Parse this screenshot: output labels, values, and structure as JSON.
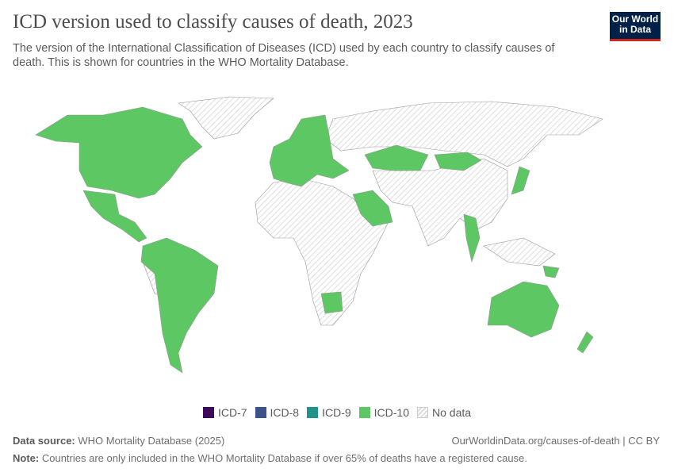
{
  "header": {
    "title": "ICD version used to classify causes of death, 2023",
    "subtitle": "The version of the International Classification of Diseases (ICD) used by each country to classify causes of death. This is shown for countries in the WHO Mortality Database.",
    "logo": "Our World in Data"
  },
  "legend": {
    "items": [
      {
        "label": "ICD-7",
        "color": "#3d0a59"
      },
      {
        "label": "ICD-8",
        "color": "#3b528b"
      },
      {
        "label": "ICD-9",
        "color": "#21918c"
      },
      {
        "label": "ICD-10",
        "color": "#5dc863"
      },
      {
        "label": "No data",
        "color": "hatched"
      }
    ]
  },
  "footer": {
    "source_label": "Data source:",
    "source": "WHO Mortality Database (2025)",
    "url": "OurWorldinData.org/causes-of-death | CC BY",
    "note_label": "Note:",
    "note": "Countries are only included in the WHO Mortality Database if over 65% of deaths have a registered cause."
  }
}
